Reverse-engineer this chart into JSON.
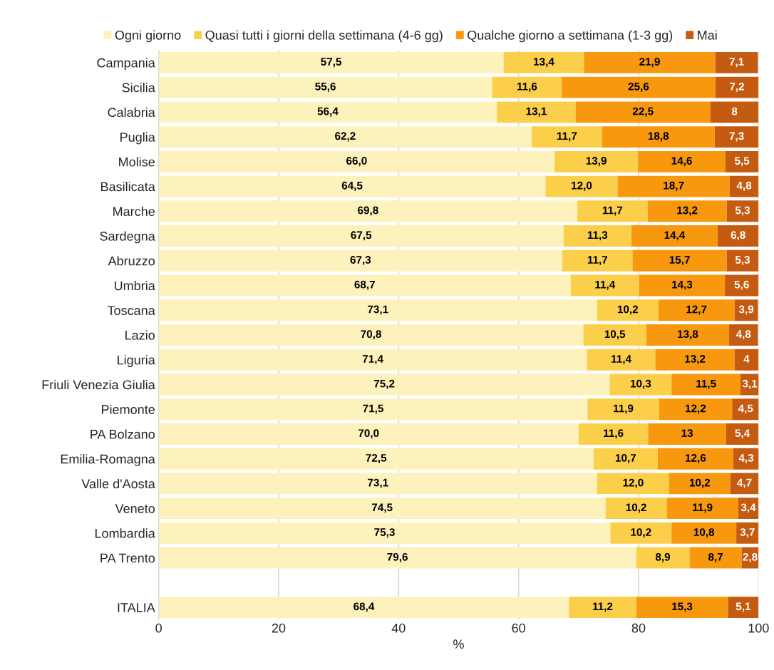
{
  "chart_data": {
    "type": "bar",
    "orientation": "horizontal",
    "stacked": true,
    "xlabel": "%",
    "xlim": [
      0,
      100
    ],
    "xticks": [
      0,
      20,
      40,
      60,
      80,
      100
    ],
    "grid": "x",
    "legend": "top",
    "categories": [
      "Campania",
      "Sicilia",
      "Calabria",
      "Puglia",
      "Molise",
      "Basilicata",
      "Marche",
      "Sardegna",
      "Abruzzo",
      "Umbria",
      "Toscana",
      "Lazio",
      "Liguria",
      "Friuli Venezia Giulia",
      "Piemonte",
      "PA Bolzano",
      "Emilia-Romagna",
      "Valle d'Aosta",
      "Veneto",
      "Lombardia",
      "PA Trento",
      null,
      "ITALIA"
    ],
    "series": [
      {
        "name": "Ogni giorno",
        "color": "#fdf2bb",
        "values": [
          57.5,
          55.6,
          56.4,
          62.2,
          66.0,
          64.5,
          69.8,
          67.5,
          67.3,
          68.7,
          73.1,
          70.8,
          71.4,
          75.2,
          71.5,
          70.0,
          72.5,
          73.1,
          74.5,
          75.3,
          79.6,
          null,
          68.4
        ],
        "value_labels": [
          "57,5",
          "55,6",
          "56,4",
          "62,2",
          "66,0",
          "64,5",
          "69,8",
          "67,5",
          "67,3",
          "68,7",
          "73,1",
          "70,8",
          "71,4",
          "75,2",
          "71,5",
          "70,0",
          "72,5",
          "73,1",
          "74,5",
          "75,3",
          "79,6",
          null,
          "68,4"
        ]
      },
      {
        "name": "Quasi tutti i giorni della settimana (4-6 gg)",
        "color": "#fccf4a",
        "values": [
          13.4,
          11.6,
          13.1,
          11.7,
          13.9,
          12.0,
          11.7,
          11.3,
          11.7,
          11.4,
          10.2,
          10.5,
          11.4,
          10.3,
          11.9,
          11.6,
          10.7,
          12.0,
          10.2,
          10.2,
          8.9,
          null,
          11.2
        ],
        "value_labels": [
          "13,4",
          "11,6",
          "13,1",
          "11,7",
          "13,9",
          "12,0",
          "11,7",
          "11,3",
          "11,7",
          "11,4",
          "10,2",
          "10,5",
          "11,4",
          "10,3",
          "11,9",
          "11,6",
          "10,7",
          "12,0",
          "10,2",
          "10,2",
          "8,9",
          null,
          "11,2"
        ]
      },
      {
        "name": "Qualche giorno a settimana (1-3 gg)",
        "color": "#f7980f",
        "values": [
          21.9,
          25.6,
          22.5,
          18.8,
          14.6,
          18.7,
          13.2,
          14.4,
          15.7,
          14.3,
          12.7,
          13.8,
          13.2,
          11.5,
          12.2,
          13,
          12.6,
          10.2,
          11.9,
          10.8,
          8.7,
          null,
          15.3
        ],
        "value_labels": [
          "21,9",
          "25,6",
          "22,5",
          "18,8",
          "14,6",
          "18,7",
          "13,2",
          "14,4",
          "15,7",
          "14,3",
          "12,7",
          "13,8",
          "13,2",
          "11,5",
          "12,2",
          "13",
          "12,6",
          "10,2",
          "11,9",
          "10,8",
          "8,7",
          null,
          "15,3"
        ]
      },
      {
        "name": "Mai",
        "color": "#c55a11",
        "values": [
          7.1,
          7.2,
          8,
          7.3,
          5.5,
          4.8,
          5.3,
          6.8,
          5.3,
          5.6,
          3.9,
          4.8,
          4,
          3.1,
          4.5,
          5.4,
          4.3,
          4.7,
          3.4,
          3.7,
          2.8,
          null,
          5.1
        ],
        "value_labels": [
          "7,1",
          "7,2",
          "8",
          "7,3",
          "5,5",
          "4,8",
          "5,3",
          "6,8",
          "5,3",
          "5,6",
          "3,9",
          "4,8",
          "4",
          "3,1",
          "4,5",
          "5,4",
          "4,3",
          "4,7",
          "3,4",
          "3,7",
          "2,8",
          null,
          "5,1"
        ]
      }
    ]
  }
}
